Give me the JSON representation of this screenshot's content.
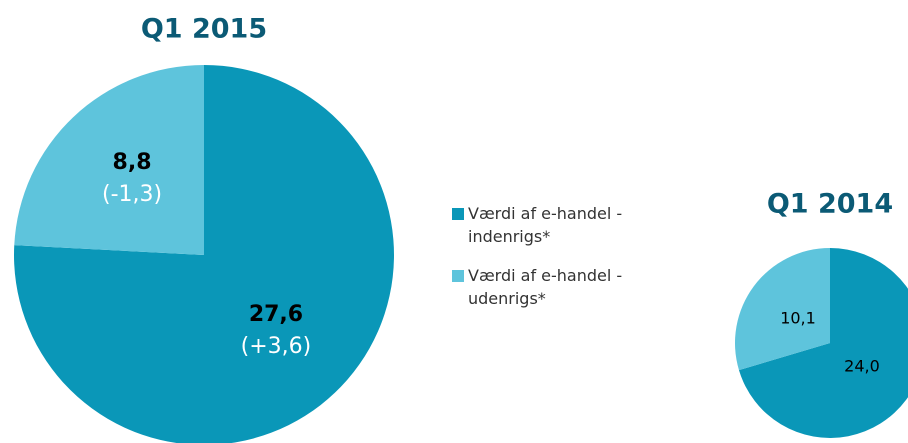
{
  "chart_data": [
    {
      "type": "pie",
      "title": "Q1 2015",
      "categories": [
        "Værdi af e-handel - indenrigs*",
        "Værdi af e-handel - udenrigs*"
      ],
      "values": [
        27.6,
        8.8
      ],
      "value_labels": [
        "27,6",
        "8,8"
      ],
      "annotations": [
        "(+3,6)",
        "(-1,3)"
      ],
      "colors": [
        "#0a97b8",
        "#5ec4dc"
      ]
    },
    {
      "type": "pie",
      "title": "Q1 2014",
      "categories": [
        "Værdi af e-handel - indenrigs*",
        "Værdi af e-handel - udenrigs*"
      ],
      "values": [
        24.0,
        10.1
      ],
      "value_labels": [
        "24,0",
        "10,1"
      ],
      "colors": [
        "#0a97b8",
        "#5ec4dc"
      ]
    }
  ]
}
